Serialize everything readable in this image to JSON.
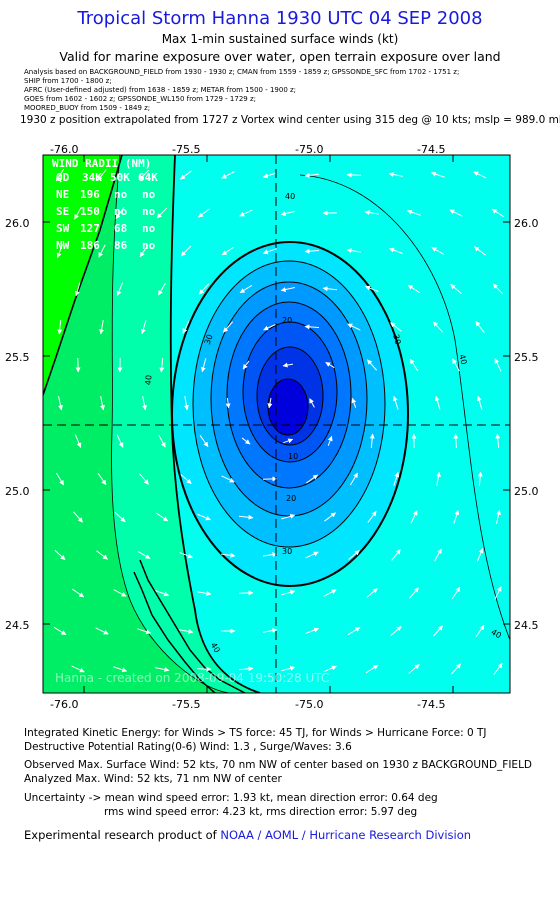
{
  "header": {
    "title": "Tropical Storm Hanna 1930 UTC 04 SEP 2008",
    "subtitle": "Max 1-min sustained surface winds (kt)",
    "valid": "Valid for marine exposure over water, open terrain exposure over land",
    "analysis_lines": [
      "Analysis based on  BACKGROUND_FIELD from 1930 - 1930 z;  CMAN from 1559 - 1859 z;  GPSSONDE_SFC from 1702 - 1751 z;",
      "SHIP from 1700 - 1800 z;",
      "AFRC  (User-defined adjusted) from 1638 - 1859 z;  METAR from 1500 - 1900 z;",
      "GOES from 1602 - 1602 z;  GPSSONDE_WL150 from 1729 - 1729 z;",
      "MOORED_BUOY from 1509 - 1849 z;"
    ],
    "position": "1930 z position extrapolated from 1727 z Vortex wind center using 315 deg @ 10 kts; mslp = 989.0 mb"
  },
  "map": {
    "lon_ticks": [
      "-76.0",
      "-75.5",
      "-75.0",
      "-74.5"
    ],
    "lat_ticks": [
      "26.0",
      "25.5",
      "25.0",
      "24.5"
    ],
    "center": {
      "lon": -75.1,
      "lat": 25.25
    },
    "contour_labels": [
      "40",
      "30",
      "20",
      "30",
      "40",
      "10",
      "20",
      "30",
      "40",
      "40"
    ],
    "watermark": "Hanna - created on 2008-09-04 19:50:28 UTC",
    "wind_radii": {
      "title": "WIND RADII (NM)",
      "header": [
        "QD",
        "34K",
        "50K",
        "64K"
      ],
      "rows": [
        [
          "NE",
          "196",
          "no",
          "no"
        ],
        [
          "SE",
          "150",
          "no",
          "no"
        ],
        [
          "SW",
          "127",
          "68",
          "no"
        ],
        [
          "NW",
          "186",
          "86",
          "no"
        ]
      ]
    },
    "colors": {
      "land": "#00ff00",
      "band_35_40": "#00ee66",
      "band_30_35": "#00ffaa",
      "band_25_30": "#00ffee",
      "band_20_25": "#00ccff",
      "band_15_20": "#0099ff",
      "band_10_15": "#0066ff",
      "band_5_10": "#0033ee",
      "band_0_5": "#0000dd"
    }
  },
  "footer": {
    "line1": "Integrated Kinetic Energy:  for Winds > TS force: 45 TJ,  for Winds > Hurricane Force: 0 TJ",
    "line2": "Destructive Potential Rating(0-6)   Wind: 1.3 , Surge/Waves: 3.6",
    "line3": "Observed Max. Surface Wind: 52 kts, 70 nm NW of center based on 1930 z BACKGROUND_FIELD",
    "line4": "Analyzed Max. Wind: 52 kts, 71 nm NW of center",
    "line5": "Uncertainty -> mean wind speed error: 1.93 kt,   mean direction error: 0.64 deg",
    "line6": "rms wind speed error: 4.23 kt,   rms direction error: 5.97 deg",
    "credit_prefix": "Experimental research product of",
    "credit_link": "NOAA / AOML / Hurricane Research Division"
  }
}
